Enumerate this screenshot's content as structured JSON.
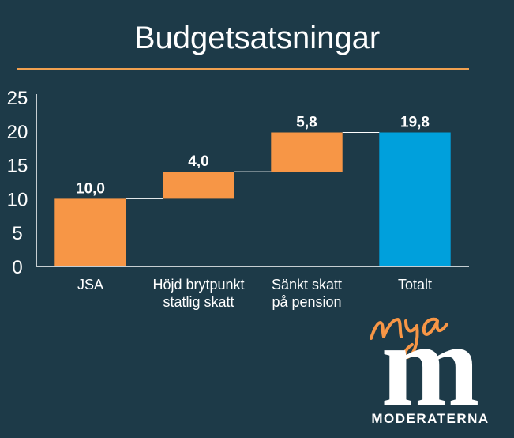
{
  "header": {
    "title": "Budgetsatsningar"
  },
  "colors": {
    "background": "#1d3a48",
    "increment": "#f79646",
    "total": "#00a0dc",
    "accent_rule": "#f0a050",
    "text": "#ffffff"
  },
  "chart_data": {
    "type": "bar",
    "subtype": "waterfall",
    "categories": [
      [
        "JSA"
      ],
      [
        "Höjd brytpunkt",
        "statlig skatt"
      ],
      [
        "Sänkt skatt",
        "på pension"
      ],
      [
        "Totalt"
      ]
    ],
    "values": [
      10.0,
      4.0,
      5.8,
      19.8
    ],
    "bases": [
      0,
      10.0,
      14.0,
      0
    ],
    "data_labels": [
      "10,0",
      "4,0",
      "5,8",
      "19,8"
    ],
    "bar_kinds": [
      "increment",
      "increment",
      "increment",
      "total"
    ],
    "ylim": [
      0,
      25
    ],
    "yticks": [
      0,
      5,
      10,
      15,
      20,
      25
    ],
    "grid": false,
    "connectors": true
  },
  "logo": {
    "script": "nya",
    "wordmark": "MODERATERNA",
    "letter": "m"
  }
}
